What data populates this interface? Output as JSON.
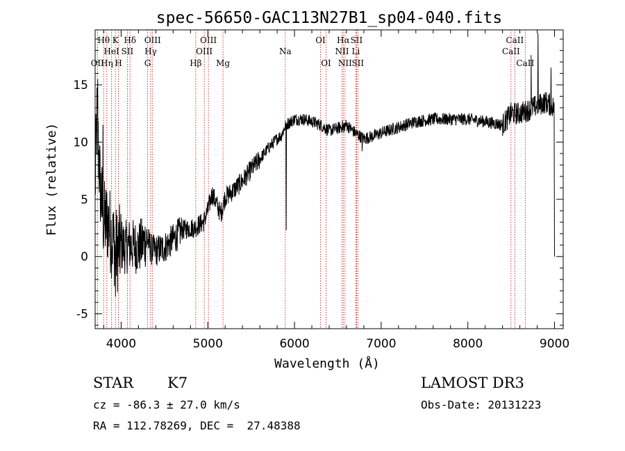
{
  "chart_data": {
    "type": "line",
    "title": "spec-56650-GAC113N27B1_sp04-040.fits",
    "xlabel": "Wavelength (Å)",
    "ylabel": "Flux (relative)",
    "xlim": [
      3700,
      9100
    ],
    "ylim": [
      -6.3,
      19.8
    ],
    "xticks": [
      4000,
      5000,
      6000,
      7000,
      8000,
      9000
    ],
    "yticks": [
      -5,
      0,
      5,
      10,
      15
    ],
    "x_minor_step": 200,
    "y_minor_step": 1,
    "series": [
      {
        "name": "flux",
        "anchors": [
          [
            3700,
            6.0
          ],
          [
            3720,
            12.0
          ],
          [
            3760,
            6.0
          ],
          [
            3800,
            3.0
          ],
          [
            3850,
            3.0
          ],
          [
            3900,
            1.5
          ],
          [
            3950,
            0.5
          ],
          [
            4000,
            1.0
          ],
          [
            4050,
            0.8
          ],
          [
            4100,
            1.0
          ],
          [
            4200,
            0.8
          ],
          [
            4300,
            1.5
          ],
          [
            4350,
            0.6
          ],
          [
            4400,
            0.5
          ],
          [
            4500,
            0.8
          ],
          [
            4600,
            1.5
          ],
          [
            4700,
            2.3
          ],
          [
            4800,
            2.5
          ],
          [
            4850,
            2.5
          ],
          [
            4900,
            2.8
          ],
          [
            4950,
            3.0
          ],
          [
            5000,
            4.0
          ],
          [
            5050,
            5.5
          ],
          [
            5100,
            4.6
          ],
          [
            5150,
            3.7
          ],
          [
            5200,
            5.2
          ],
          [
            5300,
            5.8
          ],
          [
            5400,
            6.6
          ],
          [
            5500,
            7.6
          ],
          [
            5600,
            8.5
          ],
          [
            5700,
            9.5
          ],
          [
            5800,
            10.3
          ],
          [
            5850,
            10.6
          ],
          [
            5900,
            11.5
          ],
          [
            6000,
            12.0
          ],
          [
            6100,
            12.0
          ],
          [
            6200,
            11.8
          ],
          [
            6300,
            11.5
          ],
          [
            6400,
            11.0
          ],
          [
            6500,
            11.2
          ],
          [
            6600,
            11.5
          ],
          [
            6700,
            10.8
          ],
          [
            6800,
            10.3
          ],
          [
            6900,
            10.5
          ],
          [
            7000,
            10.8
          ],
          [
            7200,
            11.3
          ],
          [
            7400,
            11.8
          ],
          [
            7600,
            12.0
          ],
          [
            7800,
            12.0
          ],
          [
            8000,
            12.0
          ],
          [
            8200,
            11.8
          ],
          [
            8400,
            11.5
          ],
          [
            8500,
            12.5
          ],
          [
            8600,
            12.5
          ],
          [
            8700,
            12.8
          ],
          [
            8800,
            13.2
          ],
          [
            8900,
            13.5
          ],
          [
            9000,
            13.0
          ]
        ],
        "features": [
          {
            "x": 3730,
            "y": 15.5
          },
          {
            "x": 3790,
            "y": 11.5
          },
          {
            "x": 3935,
            "y": -3.5
          },
          {
            "x": 5905,
            "y": 2.3
          },
          {
            "x": 6567,
            "y": 10.8
          },
          {
            "x": 6780,
            "y": 9.2
          },
          {
            "x": 8810,
            "y": 19.5
          },
          {
            "x": 8730,
            "y": 17.6
          },
          {
            "x": 8960,
            "y": 16.5
          },
          {
            "x": 9000,
            "y": 0.0
          }
        ]
      }
    ],
    "lines": [
      {
        "label": "OII",
        "wavelength": 3727,
        "row": 3
      },
      {
        "label": "Hθ",
        "wavelength": 3798,
        "row": 1
      },
      {
        "label": "Hη",
        "wavelength": 3835,
        "row": 3
      },
      {
        "label": "HeI",
        "wavelength": 3889,
        "row": 2
      },
      {
        "label": "K",
        "wavelength": 3934,
        "row": 1
      },
      {
        "label": "H",
        "wavelength": 3969,
        "row": 3
      },
      {
        "label": "SII",
        "wavelength": 4072,
        "row": 2
      },
      {
        "label": "Hδ",
        "wavelength": 4102,
        "row": 1
      },
      {
        "label": "G",
        "wavelength": 4305,
        "row": 3
      },
      {
        "label": "Hγ",
        "wavelength": 4341,
        "row": 2
      },
      {
        "label": "OIII",
        "wavelength": 4363,
        "row": 1
      },
      {
        "label": "Hβ",
        "wavelength": 4861,
        "row": 3
      },
      {
        "label": "OIII",
        "wavelength": 4959,
        "row": 2
      },
      {
        "label": "OIII",
        "wavelength": 5007,
        "row": 1
      },
      {
        "label": "Mg",
        "wavelength": 5175,
        "row": 3
      },
      {
        "label": "Na",
        "wavelength": 5894,
        "row": 2
      },
      {
        "label": "OI",
        "wavelength": 6300,
        "row": 1
      },
      {
        "label": "OI",
        "wavelength": 6364,
        "row": 3
      },
      {
        "label": "NII",
        "wavelength": 6548,
        "row": 2
      },
      {
        "label": "Hα",
        "wavelength": 6563,
        "row": 1
      },
      {
        "label": "NII",
        "wavelength": 6583,
        "row": 3
      },
      {
        "label": "SII",
        "wavelength": 6716,
        "row": 1
      },
      {
        "label": "Li",
        "wavelength": 6708,
        "row": 2
      },
      {
        "label": "SII",
        "wavelength": 6731,
        "row": 3
      },
      {
        "label": "CaII",
        "wavelength": 8498,
        "row": 2
      },
      {
        "label": "CaII",
        "wavelength": 8542,
        "row": 1
      },
      {
        "label": "CaII",
        "wavelength": 8662,
        "row": 3
      }
    ]
  },
  "info": {
    "object_class": "STAR",
    "subclass": "K7",
    "redshift": "cz = -86.3 ± 27.0 km/s",
    "coords": "RA = 112.78269, DEC =  27.48388",
    "survey": "LAMOST DR3",
    "obs_date": "Obs-Date: 20131223"
  },
  "colors": {
    "axis": "#000000",
    "spectrum": "#000000",
    "line_marker": "#cc0000"
  }
}
